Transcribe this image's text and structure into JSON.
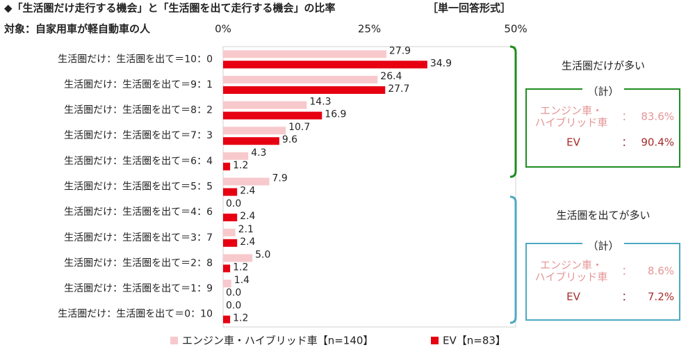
{
  "chart_data": {
    "type": "bar",
    "orientation": "horizontal",
    "title": "◆「生活圏だけ走行する機会」と「生活圏を出て走行する機会」の比率",
    "answer_format": "［単一回答形式］",
    "subtitle": "対象：自家用車が軽自動車の人",
    "categories": [
      "生活圏だけ：生活圏を出て＝10：0",
      "生活圏だけ：生活圏を出て＝9：1",
      "生活圏だけ：生活圏を出て＝8：2",
      "生活圏だけ：生活圏を出て＝7：3",
      "生活圏だけ：生活圏を出て＝6：4",
      "生活圏だけ：生活圏を出て＝5：5",
      "生活圏だけ：生活圏を出て＝4：6",
      "生活圏だけ：生活圏を出て＝3：7",
      "生活圏だけ：生活圏を出て＝2：8",
      "生活圏だけ：生活圏を出て＝1：9",
      "生活圏だけ：生活圏を出て＝0：10"
    ],
    "series": [
      {
        "name": "エンジン車・ハイブリッド車【n=140】",
        "color": "#f8c9cc",
        "values": [
          27.9,
          26.4,
          14.3,
          10.7,
          4.3,
          7.9,
          0.0,
          2.1,
          5.0,
          1.4,
          0.0
        ],
        "value_labels": [
          "27.9",
          "26.4",
          "14.3",
          "10.7",
          "4.3",
          "7.9",
          "0.0",
          "2.1",
          "5.0",
          "1.4",
          "0.0"
        ]
      },
      {
        "name": "EV【n=83】",
        "color": "#e60012",
        "values": [
          34.9,
          27.7,
          16.9,
          9.6,
          1.2,
          2.4,
          2.4,
          2.4,
          1.2,
          0.0,
          1.2
        ],
        "value_labels": [
          "34.9",
          "27.7",
          "16.9",
          "9.6",
          "1.2",
          "2.4",
          "2.4",
          "2.4",
          "1.2",
          "0.0",
          "1.2"
        ]
      }
    ],
    "xlim": [
      0,
      50
    ],
    "xticks": [
      {
        "value": 0,
        "label": "0%"
      },
      {
        "value": 25,
        "label": "25%"
      },
      {
        "value": 50,
        "label": "50%"
      }
    ],
    "grid": false,
    "legend": "bottom",
    "annotations": [
      {
        "label": "生活圏だけが多い",
        "color": "#1e8c1e",
        "total": "（計）",
        "rows": [
          {
            "name": [
              "エンジン車・",
              "ハイブリッド車"
            ],
            "sep": "：",
            "value": "83.6%"
          },
          {
            "name": [
              "EV"
            ],
            "sep": "：",
            "value": "90.4%"
          }
        ]
      },
      {
        "label": "生活圏を出てが多い",
        "color": "#4ba9c2",
        "total": "（計）",
        "rows": [
          {
            "name": [
              "エンジン車・",
              "ハイブリッド車"
            ],
            "sep": "：",
            "value": "8.6%"
          },
          {
            "name": [
              "EV"
            ],
            "sep": "：",
            "value": "7.2%"
          }
        ]
      }
    ]
  }
}
